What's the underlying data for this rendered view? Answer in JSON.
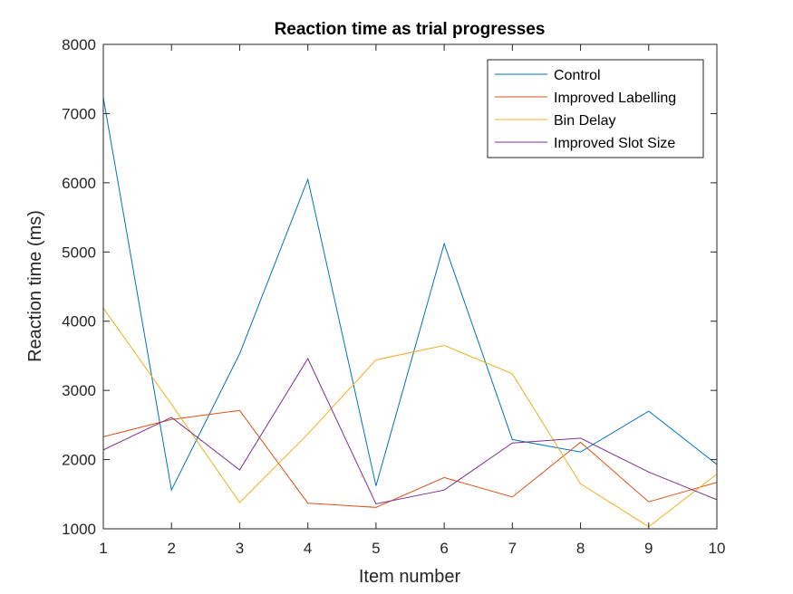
{
  "chart_data": {
    "type": "line",
    "title": "Reaction time as trial progresses",
    "xlabel": "Item number",
    "ylabel": "Reaction time (ms)",
    "x": [
      1,
      2,
      3,
      4,
      5,
      6,
      7,
      8,
      9,
      10
    ],
    "xlim": [
      1,
      10
    ],
    "ylim": [
      1000,
      8000
    ],
    "xticks": [
      "1",
      "2",
      "3",
      "4",
      "5",
      "6",
      "7",
      "8",
      "9",
      "10"
    ],
    "yticks": [
      "1000",
      "2000",
      "3000",
      "4000",
      "5000",
      "6000",
      "7000",
      "8000"
    ],
    "grid": false,
    "legend_position": "top-right",
    "series": [
      {
        "name": "Control",
        "color": "#0072BD",
        "values": [
          7230,
          1560,
          3530,
          6050,
          1620,
          5120,
          2290,
          2110,
          2700,
          1930
        ]
      },
      {
        "name": "Improved Labelling",
        "color": "#D95319",
        "values": [
          2330,
          2580,
          2710,
          1370,
          1310,
          1740,
          1460,
          2250,
          1390,
          1670
        ]
      },
      {
        "name": "Bin Delay",
        "color": "#EDB120",
        "values": [
          4190,
          2800,
          1380,
          2370,
          3440,
          3650,
          3240,
          1650,
          1030,
          1790
        ]
      },
      {
        "name": "Improved Slot Size",
        "color": "#7E2F8E",
        "values": [
          2140,
          2610,
          1850,
          3460,
          1360,
          1560,
          2240,
          2310,
          1820,
          1420
        ]
      }
    ]
  }
}
